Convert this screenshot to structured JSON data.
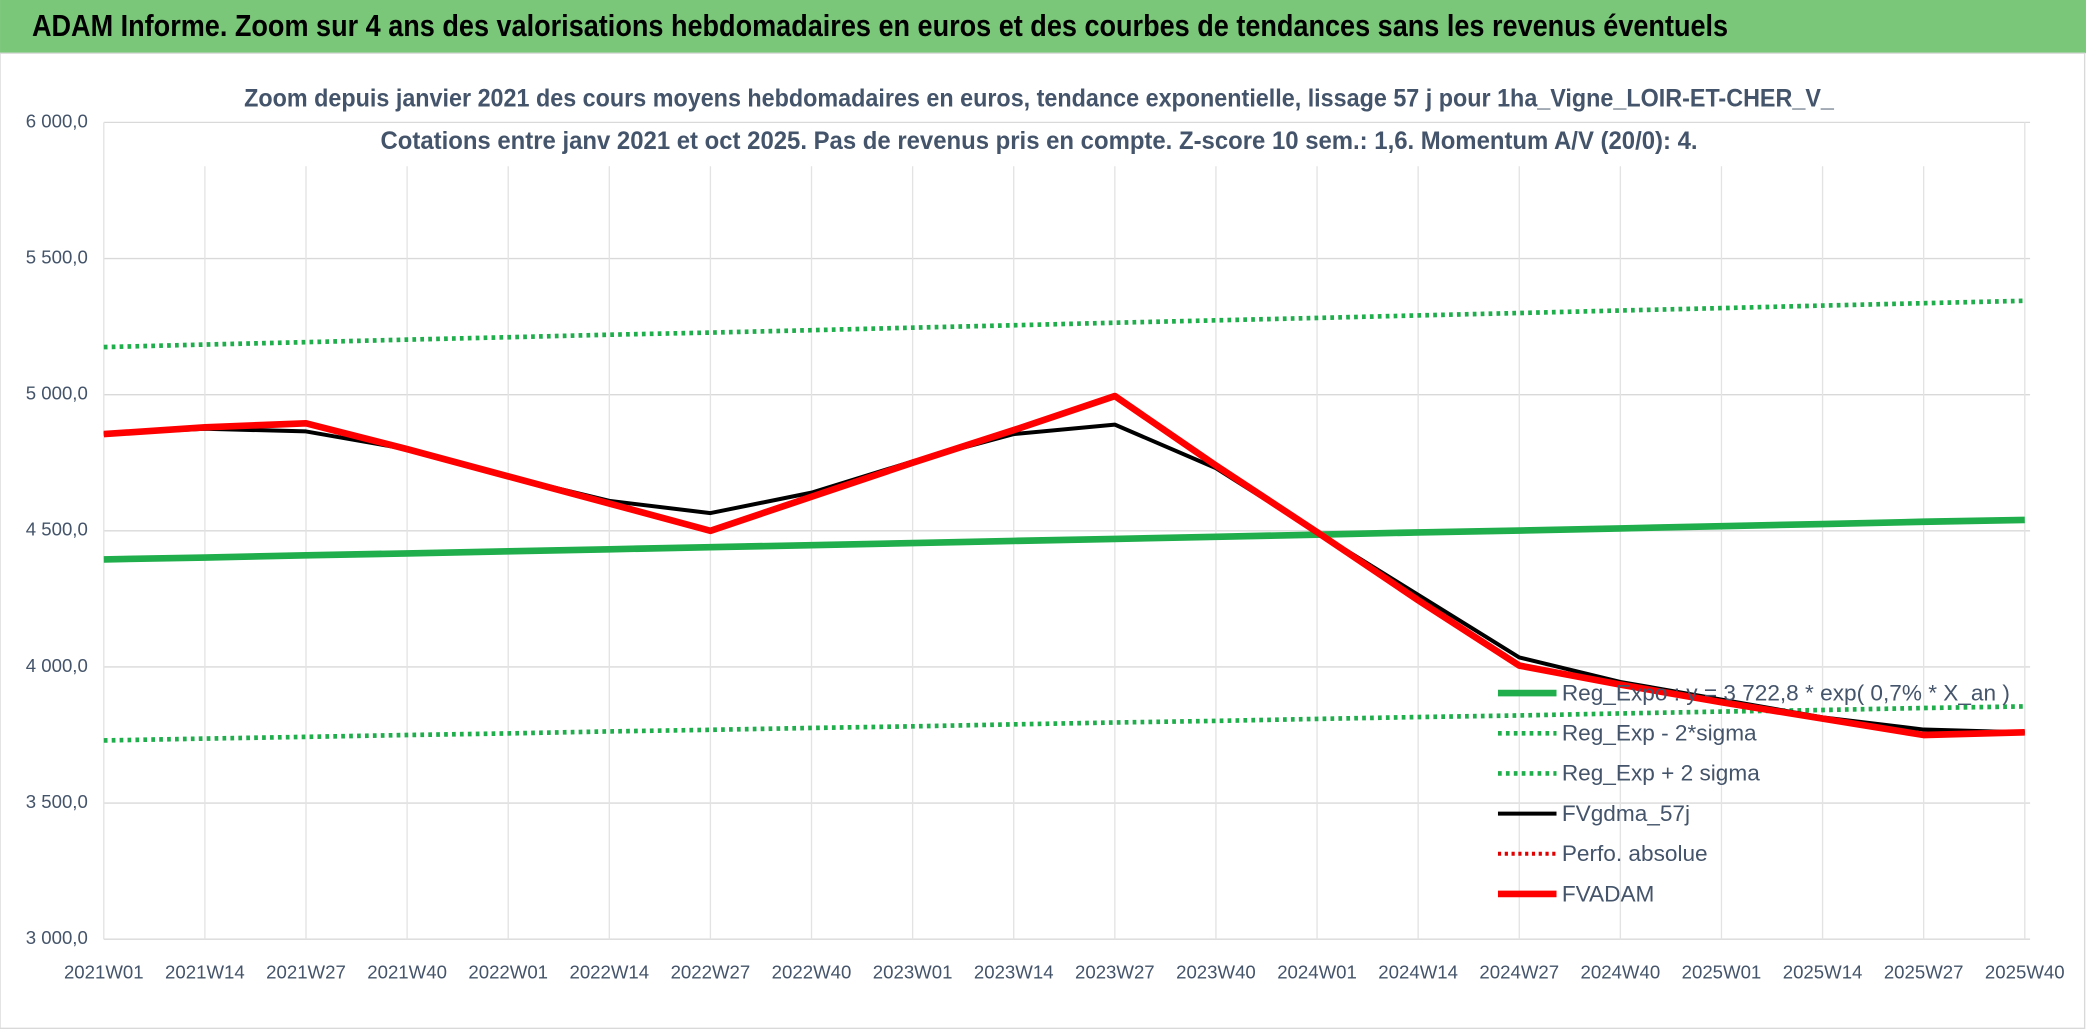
{
  "chart_data": {
    "type": "line",
    "header": "ADAM Informe. Zoom sur 4 ans des valorisations hebdomadaires en euros et des courbes de tendances sans les revenus éventuels",
    "title": "Zoom depuis janvier 2021 des cours moyens hebdomadaires en euros, tendance exponentielle, lissage 57 j pour 1ha_Vigne_LOIR-ET-CHER_V_",
    "subtitle": "Cotations entre janv 2021 et oct 2025. Pas de revenus pris en compte. Z-score 10 sem.: 1,6. Momentum A/V (20/0): 4.",
    "categories": [
      "2021W01",
      "2021W14",
      "2021W27",
      "2021W40",
      "2022W01",
      "2022W14",
      "2022W27",
      "2022W40",
      "2023W01",
      "2023W14",
      "2023W27",
      "2023W40",
      "2024W01",
      "2024W14",
      "2024W27",
      "2024W40",
      "2025W01",
      "2025W14",
      "2025W27",
      "2025W40"
    ],
    "ylim": [
      3000,
      6000
    ],
    "yticks": [
      {
        "value": 3000,
        "label": "3 000,0"
      },
      {
        "value": 3500,
        "label": "3 500,0"
      },
      {
        "value": 4000,
        "label": "4 000,0"
      },
      {
        "value": 4500,
        "label": "4 500,0"
      },
      {
        "value": 5000,
        "label": "5 000,0"
      },
      {
        "value": 5500,
        "label": "5 500,0"
      },
      {
        "value": 6000,
        "label": "6 000,0"
      }
    ],
    "grid": true,
    "legend": "bottom-right",
    "series": [
      {
        "name": "Reg_Expo : y = 3 722,8 * exp( 0,7% * X_an )",
        "color": "#1fae4b",
        "style": "solid",
        "width": 5,
        "values": [
          4395,
          4402,
          4410,
          4417,
          4425,
          4432,
          4440,
          4447,
          4455,
          4463,
          4470,
          4478,
          4486,
          4494,
          4501,
          4509,
          4517,
          4525,
          4533,
          4540
        ]
      },
      {
        "name": "Reg_Exp - 2*sigma",
        "color": "#1fae4b",
        "style": "dotted",
        "width": 3.5,
        "values": [
          3730,
          3737,
          3743,
          3750,
          3756,
          3763,
          3769,
          3776,
          3782,
          3789,
          3796,
          3802,
          3809,
          3816,
          3822,
          3829,
          3836,
          3842,
          3849,
          3855
        ]
      },
      {
        "name": "Reg_Exp + 2 sigma",
        "color": "#1fae4b",
        "style": "dotted",
        "width": 3.5,
        "values": [
          5175,
          5184,
          5193,
          5202,
          5211,
          5220,
          5228,
          5237,
          5246,
          5255,
          5264,
          5273,
          5282,
          5291,
          5300,
          5309,
          5318,
          5327,
          5336,
          5345
        ]
      },
      {
        "name": "FVgdma_57j",
        "color": "#000000",
        "style": "solid",
        "width": 3,
        "values": [
          4855,
          4875,
          4865,
          4800,
          4700,
          4610,
          4565,
          4640,
          4755,
          4855,
          4890,
          4730,
          4495,
          4265,
          4035,
          3945,
          3880,
          3815,
          3770,
          3760
        ]
      },
      {
        "name": "Perfo. absolue",
        "color": "#e00000",
        "style": "dotted",
        "width": 3,
        "values": [
          null,
          null,
          null,
          null,
          null,
          null,
          null,
          null,
          null,
          null,
          null,
          null,
          null,
          null,
          null,
          null,
          null,
          null,
          null,
          null
        ]
      },
      {
        "name": "FVADAM",
        "color": "#ff0000",
        "style": "solid",
        "width": 5,
        "values": [
          4855,
          4880,
          4895,
          4800,
          4700,
          4600,
          4500,
          4625,
          4750,
          4870,
          4995,
          4740,
          4495,
          4245,
          4005,
          3935,
          3870,
          3810,
          3750,
          3760
        ]
      }
    ]
  }
}
